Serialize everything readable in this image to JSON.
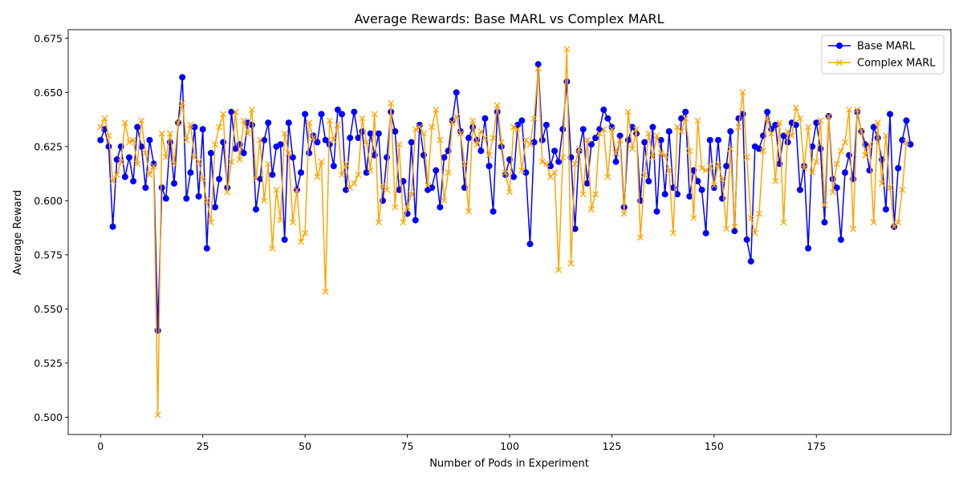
{
  "chart_data": {
    "type": "line",
    "title": "Average Rewards: Base MARL vs Complex MARL",
    "xlabel": "Number of Pods in Experiment",
    "ylabel": "Average Reward",
    "xlim": [
      -7.9,
      207.9
    ],
    "ylim": [
      0.492,
      0.679
    ],
    "xticks": [
      0,
      25,
      50,
      75,
      100,
      125,
      150,
      175
    ],
    "yticks": [
      0.5,
      0.525,
      0.55,
      0.575,
      0.6,
      0.625,
      0.65,
      0.675
    ],
    "ytick_labels": [
      "0.500",
      "0.525",
      "0.550",
      "0.575",
      "0.600",
      "0.625",
      "0.650",
      "0.675"
    ],
    "grid": false,
    "legend_position": "top-right",
    "x_start": 0,
    "series": [
      {
        "name": "Base MARL",
        "color": "#0000ff",
        "marker": "circle",
        "values": [
          0.628,
          0.633,
          0.625,
          0.588,
          0.619,
          0.625,
          0.611,
          0.62,
          0.609,
          0.634,
          0.625,
          0.606,
          0.628,
          0.617,
          0.54,
          0.606,
          0.601,
          0.627,
          0.608,
          0.636,
          0.657,
          0.601,
          0.613,
          0.634,
          0.602,
          0.633,
          0.578,
          0.622,
          0.597,
          0.61,
          0.627,
          0.606,
          0.641,
          0.624,
          0.626,
          0.622,
          0.636,
          0.635,
          0.596,
          0.61,
          0.628,
          0.636,
          0.612,
          0.625,
          0.626,
          0.582,
          0.636,
          0.62,
          0.605,
          0.613,
          0.64,
          0.622,
          0.63,
          0.627,
          0.64,
          0.628,
          0.626,
          0.616,
          0.642,
          0.64,
          0.605,
          0.629,
          0.641,
          0.629,
          0.632,
          0.613,
          0.631,
          0.621,
          0.631,
          0.6,
          0.62,
          0.641,
          0.632,
          0.605,
          0.609,
          0.594,
          0.627,
          0.591,
          0.635,
          0.621,
          0.605,
          0.606,
          0.614,
          0.597,
          0.62,
          0.623,
          0.637,
          0.65,
          0.632,
          0.606,
          0.629,
          0.634,
          0.628,
          0.623,
          0.638,
          0.616,
          0.595,
          0.641,
          0.625,
          0.612,
          0.619,
          0.611,
          0.635,
          0.637,
          0.613,
          0.58,
          0.627,
          0.663,
          0.628,
          0.635,
          0.616,
          0.623,
          0.618,
          0.633,
          0.655,
          0.62,
          0.587,
          0.623,
          0.633,
          0.608,
          0.626,
          0.629,
          0.633,
          0.642,
          0.638,
          0.634,
          0.618,
          0.63,
          0.597,
          0.628,
          0.634,
          0.631,
          0.6,
          0.627,
          0.609,
          0.634,
          0.595,
          0.628,
          0.603,
          0.632,
          0.606,
          0.603,
          0.638,
          0.641,
          0.602,
          0.614,
          0.609,
          0.605,
          0.585,
          0.628,
          0.606,
          0.628,
          0.601,
          0.616,
          0.632,
          0.586,
          0.638,
          0.64,
          0.582,
          0.572,
          0.625,
          0.624,
          0.63,
          0.641,
          0.633,
          0.635,
          0.617,
          0.63,
          0.627,
          0.636,
          0.635,
          0.605,
          0.616,
          0.578,
          0.625,
          0.636,
          0.624,
          0.59,
          0.639,
          0.61,
          0.606,
          0.582,
          0.613,
          0.621,
          0.61,
          0.641,
          0.632,
          0.626,
          0.614,
          0.634,
          0.629,
          0.619,
          0.596,
          0.64,
          0.588,
          0.615,
          0.628,
          0.637,
          0.626
        ]
      },
      {
        "name": "Complex MARL",
        "color": "#ffa500",
        "marker": "x",
        "values": [
          0.634,
          0.638,
          0.63,
          0.609,
          0.612,
          0.618,
          0.636,
          0.627,
          0.628,
          0.617,
          0.637,
          0.622,
          0.612,
          0.616,
          0.501,
          0.631,
          0.62,
          0.631,
          0.617,
          0.636,
          0.645,
          0.628,
          0.635,
          0.62,
          0.618,
          0.61,
          0.6,
          0.59,
          0.626,
          0.634,
          0.64,
          0.604,
          0.618,
          0.641,
          0.619,
          0.637,
          0.631,
          0.642,
          0.61,
          0.628,
          0.6,
          0.617,
          0.578,
          0.605,
          0.591,
          0.631,
          0.622,
          0.59,
          0.605,
          0.581,
          0.585,
          0.636,
          0.629,
          0.611,
          0.618,
          0.558,
          0.637,
          0.628,
          0.635,
          0.612,
          0.617,
          0.606,
          0.608,
          0.612,
          0.638,
          0.627,
          0.614,
          0.64,
          0.59,
          0.607,
          0.605,
          0.645,
          0.597,
          0.626,
          0.59,
          0.597,
          0.603,
          0.633,
          0.634,
          0.631,
          0.607,
          0.634,
          0.642,
          0.628,
          0.6,
          0.613,
          0.636,
          0.639,
          0.631,
          0.617,
          0.595,
          0.637,
          0.626,
          0.632,
          0.629,
          0.621,
          0.629,
          0.644,
          0.627,
          0.613,
          0.604,
          0.634,
          0.633,
          0.614,
          0.628,
          0.626,
          0.638,
          0.661,
          0.618,
          0.617,
          0.611,
          0.613,
          0.568,
          0.62,
          0.67,
          0.571,
          0.617,
          0.624,
          0.603,
          0.628,
          0.596,
          0.603,
          0.631,
          0.633,
          0.611,
          0.633,
          0.622,
          0.628,
          0.594,
          0.641,
          0.624,
          0.633,
          0.583,
          0.612,
          0.631,
          0.62,
          0.63,
          0.622,
          0.621,
          0.614,
          0.585,
          0.634,
          0.632,
          0.638,
          0.623,
          0.592,
          0.637,
          0.615,
          0.614,
          0.616,
          0.607,
          0.617,
          0.61,
          0.587,
          0.624,
          0.588,
          0.634,
          0.65,
          0.62,
          0.592,
          0.585,
          0.594,
          0.623,
          0.638,
          0.631,
          0.609,
          0.636,
          0.59,
          0.632,
          0.63,
          0.643,
          0.638,
          0.615,
          0.634,
          0.613,
          0.618,
          0.637,
          0.598,
          0.639,
          0.604,
          0.617,
          0.623,
          0.627,
          0.642,
          0.587,
          0.642,
          0.632,
          0.621,
          0.626,
          0.59,
          0.636,
          0.608,
          0.63,
          0.606,
          0.588,
          0.59,
          0.605,
          0.627
        ]
      }
    ]
  }
}
